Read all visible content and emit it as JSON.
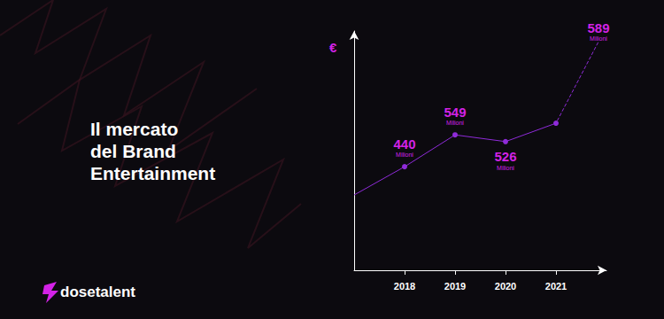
{
  "chart_data": {
    "type": "line",
    "title": "Il mercato\ndel Brand\nEntertainment",
    "y_label": "€",
    "categories": [
      null,
      "2018",
      "2019",
      "2020",
      "2021",
      null
    ],
    "values": [
      343,
      440,
      549,
      526,
      589,
      null
    ],
    "value_labels": [
      null,
      "440",
      "549",
      "526",
      "589",
      null
    ],
    "value_unit": "Milioni",
    "ylim": [
      85,
      905
    ],
    "color": "#8f2bd9",
    "data_labels": true,
    "tick_labels": "x",
    "grid": false
  },
  "brand": "dosetalent"
}
